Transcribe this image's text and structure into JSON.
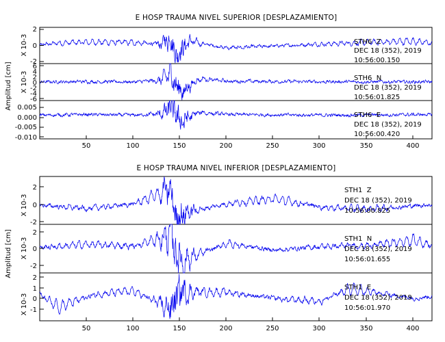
{
  "chart_data": [
    {
      "type": "line",
      "title": "E HOSP TRAUMA NIVEL SUPERIOR [DESPLAZAMIENTO]",
      "ylabel": "Amplitud [cm]",
      "xlim": [
        0,
        418
      ],
      "xticks": [
        "50",
        "100",
        "150",
        "200",
        "250",
        "300",
        "350",
        "400"
      ],
      "grid": false,
      "panels": [
        {
          "multiplier": "X 10-3",
          "ylim": [
            -2.2,
            2.2
          ],
          "yticks": [
            "-2",
            "0",
            "2"
          ],
          "station": "STH6  Z",
          "date": "DEC 18 (352), 2019",
          "time": "10:56:00.150",
          "sample": {
            "x": [
              0,
              20,
              60,
              100,
              130,
              138,
              145,
              160,
              200,
              300,
              400,
              418
            ],
            "y": [
              0.1,
              0.5,
              0.7,
              0.6,
              0.2,
              2.0,
              -1.5,
              0.8,
              -0.5,
              0.3,
              0.9,
              0.4
            ]
          }
        },
        {
          "multiplier": "X 10-3",
          "ylim": [
            -6.5,
            6.5
          ],
          "yticks": [
            "-6",
            "-4",
            "-2",
            "0",
            "2",
            "4",
            "6"
          ],
          "station": "STH6  N",
          "date": "DEC 18 (352), 2019",
          "time": "10:56:01.825",
          "sample": {
            "x": [
              0,
              50,
              100,
              130,
              140,
              150,
              170,
              200,
              300,
              418
            ],
            "y": [
              0.1,
              0.3,
              0.1,
              1.0,
              5.5,
              -6.0,
              2.0,
              0.5,
              0.2,
              0.1
            ]
          }
        },
        {
          "multiplier": "",
          "ylim": [
            -0.0105,
            0.0065
          ],
          "yticks": [
            "0.005",
            "0.000",
            "-0.005",
            "-0.010"
          ],
          "station": "STH6  E",
          "date": "DEC 18 (352), 2019",
          "time": "10:56:00.420",
          "sample": {
            "x": [
              0,
              50,
              100,
              130,
              140,
              150,
              170,
              200,
              300,
              418
            ],
            "y": [
              0.0,
              0.0005,
              0.0,
              0.001,
              0.005,
              -0.005,
              0.002,
              0.0005,
              0.0,
              0.0005
            ]
          }
        }
      ]
    },
    {
      "type": "line",
      "title": "E HOSP TRAUMA NIVEL INFERIOR [DESPLAZAMIENTO]",
      "ylabel": "Amplitud [cm]",
      "xlim": [
        0,
        418
      ],
      "xticks": [
        "50",
        "100",
        "150",
        "200",
        "250",
        "300",
        "350",
        "400"
      ],
      "grid": false,
      "panels": [
        {
          "multiplier": "X 10-3",
          "ylim": [
            -2.2,
            3.4
          ],
          "yticks": [
            "-2",
            "0",
            "2"
          ],
          "station": "STH1  Z",
          "date": "DEC 18 (352), 2019",
          "time": "10:56:00.825",
          "sample": {
            "x": [
              0,
              50,
              100,
              138,
              145,
              200,
              250,
              300,
              350,
              418
            ],
            "y": [
              0.1,
              -0.6,
              0.3,
              3.0,
              -1.8,
              0.4,
              1.3,
              -0.3,
              -0.7,
              0.2
            ]
          }
        },
        {
          "multiplier": "X 10-3",
          "ylim": [
            -2.8,
            2.8
          ],
          "yticks": [
            "-2",
            "0",
            "2"
          ],
          "station": "STH1  N",
          "date": "DEC 18 (352), 2019",
          "time": "10:56:01.655",
          "sample": {
            "x": [
              0,
              50,
              100,
              140,
              150,
              200,
              250,
              300,
              350,
              400,
              418
            ],
            "y": [
              0.2,
              0.8,
              0.5,
              2.5,
              -2.5,
              1.0,
              -0.3,
              0.4,
              0.6,
              1.6,
              0.6
            ]
          }
        },
        {
          "multiplier": "X 10-3",
          "ylim": [
            -2.2,
            2.2
          ],
          "yticks": [
            "-1",
            "0",
            "1",
            "2"
          ],
          "station": "STH1  E",
          "date": "DEC 18 (352), 2019",
          "time": "10:56:01.970",
          "sample": {
            "x": [
              0,
              20,
              60,
              100,
              138,
              150,
              200,
              260,
              300,
              330,
              400,
              418
            ],
            "y": [
              0.5,
              -1.5,
              0.4,
              0.9,
              -1.8,
              0.8,
              0.7,
              -0.4,
              -0.6,
              1.2,
              -0.2,
              0.1
            ]
          }
        }
      ]
    }
  ]
}
